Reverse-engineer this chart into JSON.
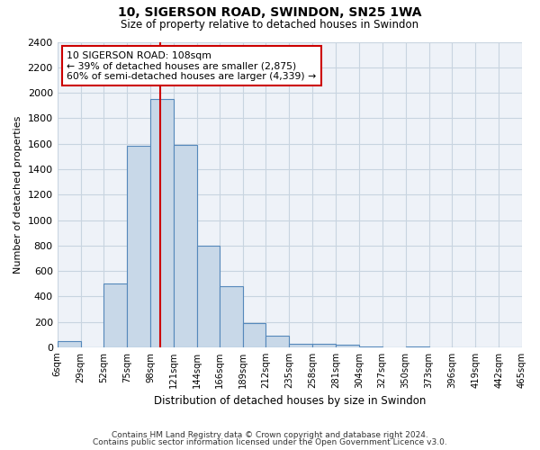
{
  "title": "10, SIGERSON ROAD, SWINDON, SN25 1WA",
  "subtitle": "Size of property relative to detached houses in Swindon",
  "xlabel": "Distribution of detached houses by size in Swindon",
  "ylabel": "Number of detached properties",
  "bin_labels": [
    "6sqm",
    "29sqm",
    "52sqm",
    "75sqm",
    "98sqm",
    "121sqm",
    "144sqm",
    "166sqm",
    "189sqm",
    "212sqm",
    "235sqm",
    "258sqm",
    "281sqm",
    "304sqm",
    "327sqm",
    "350sqm",
    "373sqm",
    "396sqm",
    "419sqm",
    "442sqm",
    "465sqm"
  ],
  "bin_edges": [
    6,
    29,
    52,
    75,
    98,
    121,
    144,
    166,
    189,
    212,
    235,
    258,
    281,
    304,
    327,
    350,
    373,
    396,
    419,
    442,
    465
  ],
  "bar_heights": [
    50,
    0,
    500,
    1580,
    1950,
    1590,
    800,
    480,
    190,
    90,
    30,
    30,
    20,
    10,
    0,
    10,
    0,
    0,
    0,
    0
  ],
  "bar_color": "#c8d8e8",
  "bar_edge_color": "#5588bb",
  "vline_x": 108,
  "vline_color": "#cc0000",
  "annotation_title": "10 SIGERSON ROAD: 108sqm",
  "annotation_line1": "← 39% of detached houses are smaller (2,875)",
  "annotation_line2": "60% of semi-detached houses are larger (4,339) →",
  "annotation_box_color": "#ffffff",
  "annotation_box_edge": "#cc0000",
  "ylim": [
    0,
    2400
  ],
  "yticks": [
    0,
    200,
    400,
    600,
    800,
    1000,
    1200,
    1400,
    1600,
    1800,
    2000,
    2200,
    2400
  ],
  "grid_color": "#c8d4e0",
  "bg_color": "#eef2f8",
  "footer_line1": "Contains HM Land Registry data © Crown copyright and database right 2024.",
  "footer_line2": "Contains public sector information licensed under the Open Government Licence v3.0."
}
